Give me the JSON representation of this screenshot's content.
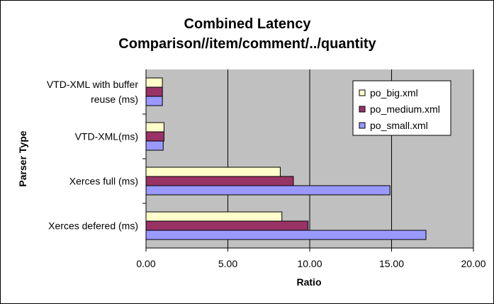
{
  "chart_data": {
    "type": "bar",
    "orientation": "horizontal",
    "title_lines": [
      "Combined Latency",
      "Comparison//item/comment/../quantity"
    ],
    "xlabel": "Ratio",
    "ylabel": "Parser Type",
    "xlim": [
      0,
      20
    ],
    "xticks": [
      "0.00",
      "5.00",
      "10.00",
      "15.00",
      "20.00"
    ],
    "grid": "vertical major gridlines",
    "legend_position": "top-right inside plot",
    "plot_background": "#c0c0c0",
    "categories": [
      "VTD-XML with buffer reuse (ms)",
      "VTD-XML(ms)",
      "Xerces full (ms)",
      "Xerces defered (ms)"
    ],
    "category_label_lines": [
      [
        "VTD-XML with buffer",
        "reuse (ms)"
      ],
      [
        "VTD-XML(ms)"
      ],
      [
        "Xerces full (ms)"
      ],
      [
        "Xerces defered (ms)"
      ]
    ],
    "series": [
      {
        "name": "po_big.xml",
        "color": "#ffffcc",
        "values": [
          1.0,
          1.1,
          8.2,
          8.3
        ]
      },
      {
        "name": "po_medium.xml",
        "color": "#993366",
        "values": [
          1.0,
          1.1,
          9.0,
          9.9
        ]
      },
      {
        "name": "po_small.xml",
        "color": "#9999ff",
        "values": [
          1.0,
          1.05,
          14.9,
          17.1
        ]
      }
    ]
  }
}
